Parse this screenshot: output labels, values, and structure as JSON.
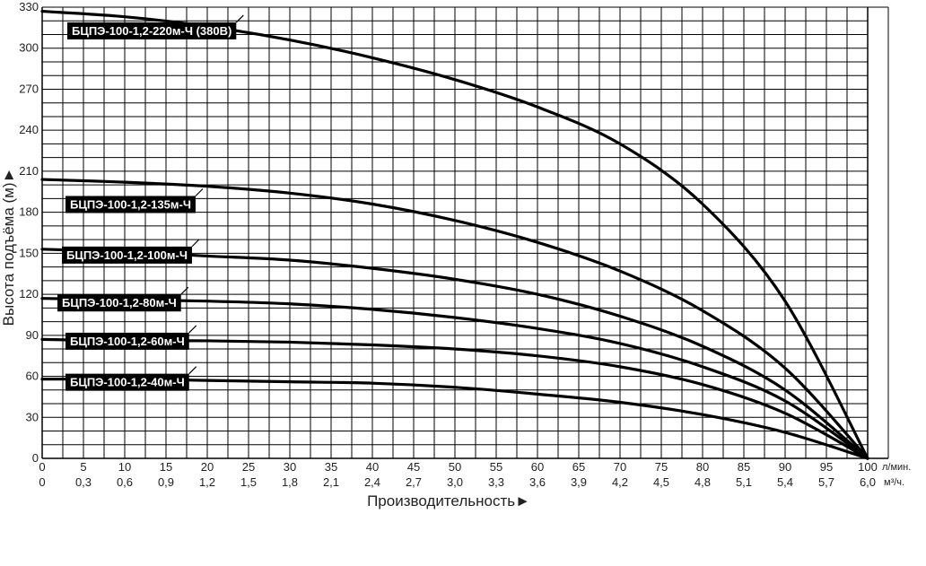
{
  "chart_data": {
    "type": "line",
    "xlabel": "Производительность",
    "xlabel_arrow": "►",
    "ylabel": "Высота подъёма (м)",
    "ylabel_arrow": "►",
    "x_unit": "л/мин.",
    "x2_unit": "м³/ч.",
    "xlim": [
      0,
      100
    ],
    "ylim": [
      0,
      330
    ],
    "x_ticks": [
      0,
      5,
      10,
      15,
      20,
      25,
      30,
      35,
      40,
      45,
      50,
      55,
      60,
      65,
      70,
      75,
      80,
      85,
      90,
      95,
      100
    ],
    "x2_ticks": [
      "0",
      "0,3",
      "0,6",
      "0,9",
      "1,2",
      "1,5",
      "1,8",
      "2,1",
      "2,4",
      "2,7",
      "3,0",
      "3,3",
      "3,6",
      "3,9",
      "4,2",
      "4,5",
      "4,8",
      "5,1",
      "5,4",
      "5,7",
      "6,0"
    ],
    "y_ticks": [
      0,
      30,
      60,
      90,
      120,
      150,
      180,
      210,
      240,
      270,
      300,
      330
    ],
    "grid": true,
    "series": [
      {
        "name": "БЦПЭ-100-1,2-220м-Ч (380В)",
        "x": [
          0,
          10,
          20,
          30,
          40,
          50,
          60,
          70,
          80,
          90,
          100
        ],
        "y": [
          327,
          323,
          316,
          306,
          293,
          277,
          257,
          230,
          186,
          115,
          0
        ]
      },
      {
        "name": "БЦПЭ-100-1,2-135м-Ч",
        "x": [
          0,
          10,
          20,
          30,
          40,
          50,
          60,
          70,
          80,
          90,
          100
        ],
        "y": [
          204,
          202,
          199,
          194,
          186,
          174,
          158,
          137,
          108,
          66,
          0
        ]
      },
      {
        "name": "БЦПЭ-100-1,2-100м-Ч",
        "x": [
          0,
          10,
          20,
          30,
          40,
          50,
          60,
          70,
          80,
          90,
          100
        ],
        "y": [
          153,
          151,
          148,
          145,
          139,
          131,
          120,
          104,
          82,
          50,
          0
        ]
      },
      {
        "name": "БЦПЭ-100-1,2-80м-Ч",
        "x": [
          0,
          10,
          20,
          30,
          40,
          50,
          60,
          70,
          80,
          90,
          100
        ],
        "y": [
          117,
          116,
          115,
          113,
          109,
          103,
          95,
          84,
          67,
          42,
          0
        ]
      },
      {
        "name": "БЦПЭ-100-1,2-60м-Ч",
        "x": [
          0,
          10,
          20,
          30,
          40,
          50,
          60,
          70,
          80,
          90,
          100
        ],
        "y": [
          87,
          86,
          86,
          85,
          83,
          80,
          75,
          67,
          54,
          33,
          0
        ]
      },
      {
        "name": "БЦПЭ-100-1,2-40м-Ч",
        "x": [
          0,
          10,
          20,
          30,
          40,
          50,
          60,
          70,
          80,
          90,
          100
        ],
        "y": [
          58,
          58,
          57,
          56,
          55,
          52,
          47,
          41,
          32,
          19,
          0
        ]
      }
    ],
    "colors": {
      "line": "#000000",
      "grid": "#000000",
      "label_bg": "#000000",
      "label_text": "#ffffff"
    }
  }
}
